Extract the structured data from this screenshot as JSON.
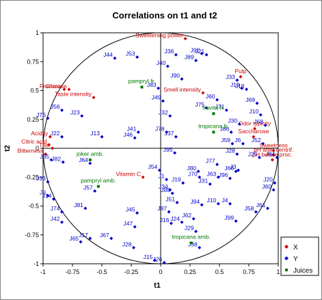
{
  "chart_data": {
    "type": "scatter",
    "title": "Correlations on t1 and t2",
    "xlabel": "t1",
    "ylabel": "t2",
    "xlim": [
      -1,
      1
    ],
    "ylim": [
      -1,
      1
    ],
    "xticks": [
      "-1",
      "-0.75",
      "-0.5",
      "-0.25",
      "0",
      "0.25",
      "0.5",
      "0.75",
      "1"
    ],
    "yticks": [
      "-1",
      "-0.75",
      "-0.5",
      "-0.25",
      "0",
      "0.25",
      "0.5",
      "0.75",
      "1"
    ],
    "xtick_values": [
      -1,
      -0.75,
      -0.5,
      -0.25,
      0,
      0.25,
      0.5,
      0.75,
      1
    ],
    "ytick_values": [
      -1,
      -0.75,
      -0.5,
      -0.25,
      0,
      0.25,
      0.5,
      0.75,
      1
    ],
    "grid": false,
    "unit_circle": true,
    "legend_position": "bottom-right",
    "colors": {
      "X": "#cc0000",
      "Y": "#0000cc",
      "Juices": "#007700"
    },
    "series": [
      {
        "name": "X",
        "points": [
          {
            "label": "Sweetening power",
            "x": 0.21,
            "y": 0.95
          },
          {
            "label": "Pulp",
            "x": 0.68,
            "y": 0.62
          },
          {
            "label": "Smell intensity",
            "x": 0.36,
            "y": 0.48
          },
          {
            "label": "Glucose",
            "x": -0.78,
            "y": 0.51
          },
          {
            "label": "Fructose",
            "x": -0.82,
            "y": 0.51
          },
          {
            "label": "Taste intensity",
            "x": -0.57,
            "y": 0.44
          },
          {
            "label": "Odor typicity",
            "x": 0.8,
            "y": 0.17
          },
          {
            "label": "Saccharose",
            "x": 0.79,
            "y": 0.1
          },
          {
            "label": "Acidity",
            "x": -0.94,
            "y": 0.1
          },
          {
            "label": "Citric acid",
            "x": -0.95,
            "y": 0.03
          },
          {
            "label": "Titer",
            "x": -0.92,
            "y": 0.0
          },
          {
            "label": "Bitterness",
            "x": -0.98,
            "y": -0.05
          },
          {
            "label": "Sweetness",
            "x": 0.96,
            "y": -0.02
          },
          {
            "label": "pH after centrif.",
            "x": 0.96,
            "y": -0.06
          },
          {
            "label": "pH before proc.",
            "x": 0.95,
            "y": -0.1
          },
          {
            "label": "Vitamin C",
            "x": -0.15,
            "y": -0.25
          }
        ]
      },
      {
        "name": "Y",
        "points": [
          {
            "label": "J44",
            "x": -0.39,
            "y": 0.78
          },
          {
            "label": "J53",
            "x": -0.2,
            "y": 0.79
          },
          {
            "label": "J36",
            "x": 0.13,
            "y": 0.81
          },
          {
            "label": "J21",
            "x": 0.39,
            "y": 0.81
          },
          {
            "label": "J92",
            "x": 0.35,
            "y": 0.82
          },
          {
            "label": "J89",
            "x": 0.3,
            "y": 0.76
          },
          {
            "label": "J40",
            "x": 0.06,
            "y": 0.71
          },
          {
            "label": "J90",
            "x": 0.18,
            "y": 0.6
          },
          {
            "label": "J33",
            "x": 0.65,
            "y": 0.59
          },
          {
            "label": "J19",
            "x": 0.69,
            "y": 0.52
          },
          {
            "label": "J18",
            "x": 0.73,
            "y": 0.51
          },
          {
            "label": "J83",
            "x": -0.02,
            "y": 0.52
          },
          {
            "label": "J49",
            "x": 0.02,
            "y": 0.41
          },
          {
            "label": "J60",
            "x": 0.48,
            "y": 0.42
          },
          {
            "label": "J69",
            "x": 0.82,
            "y": 0.39
          },
          {
            "label": "J75",
            "x": 0.39,
            "y": 0.35
          },
          {
            "label": "J71",
            "x": 0.56,
            "y": 0.33
          },
          {
            "label": "J10",
            "x": 0.85,
            "y": 0.29
          },
          {
            "label": "J56",
            "x": -0.84,
            "y": 0.33
          },
          {
            "label": "J23",
            "x": -0.67,
            "y": 0.28
          },
          {
            "label": "J76",
            "x": -0.96,
            "y": 0.26
          },
          {
            "label": "J32",
            "x": 0.08,
            "y": 0.28
          },
          {
            "label": "J41",
            "x": -0.19,
            "y": 0.14
          },
          {
            "label": "J46",
            "x": -0.22,
            "y": 0.09
          },
          {
            "label": "J30",
            "x": 0.67,
            "y": 0.21
          },
          {
            "label": "J68",
            "x": 0.89,
            "y": 0.2
          },
          {
            "label": "J86",
            "x": 0.6,
            "y": 0.14
          },
          {
            "label": "J22",
            "x": -0.84,
            "y": 0.1
          },
          {
            "label": "J13",
            "x": -0.5,
            "y": 0.1
          },
          {
            "label": "J78",
            "x": 0.05,
            "y": 0.14
          },
          {
            "label": "J37",
            "x": 0.13,
            "y": 0.1
          },
          {
            "label": "J59",
            "x": 0.61,
            "y": 0.04
          },
          {
            "label": "J6",
            "x": 0.7,
            "y": 0.04
          },
          {
            "label": "J52",
            "x": 0.87,
            "y": 0.04
          },
          {
            "label": "J95",
            "x": 0.12,
            "y": -0.04
          },
          {
            "label": "J28",
            "x": 0.65,
            "y": -0.05
          },
          {
            "label": "J85",
            "x": -0.93,
            "y": -0.1
          },
          {
            "label": "J82",
            "x": -0.83,
            "y": -0.12
          },
          {
            "label": "J64",
            "x": -0.6,
            "y": -0.13
          },
          {
            "label": "J25",
            "x": 0.84,
            "y": -0.08
          },
          {
            "label": "J84",
            "x": 0.99,
            "y": -0.08
          },
          {
            "label": "J54",
            "x": -0.01,
            "y": -0.19
          },
          {
            "label": "J77",
            "x": 0.48,
            "y": -0.14
          },
          {
            "label": "J3",
            "x": 0.66,
            "y": -0.19
          },
          {
            "label": "J80",
            "x": 0.32,
            "y": -0.2
          },
          {
            "label": "J63",
            "x": 0.49,
            "y": -0.25
          },
          {
            "label": "J66",
            "x": 0.64,
            "y": -0.2
          },
          {
            "label": "J96",
            "x": 0.59,
            "y": -0.26
          },
          {
            "label": "J70",
            "x": 0.33,
            "y": -0.25
          },
          {
            "label": "J93",
            "x": -0.96,
            "y": -0.29
          },
          {
            "label": "J1",
            "x": 0.05,
            "y": -0.27
          },
          {
            "label": "J19b",
            "x": 0.19,
            "y": -0.3
          },
          {
            "label": "J34",
            "x": 0.08,
            "y": -0.36
          },
          {
            "label": "J31",
            "x": 0.42,
            "y": -0.31
          },
          {
            "label": "J20",
            "x": 0.97,
            "y": -0.3
          },
          {
            "label": "J60b",
            "x": 0.96,
            "y": -0.36
          },
          {
            "label": "J57",
            "x": -0.56,
            "y": -0.37
          },
          {
            "label": "J9",
            "x": -0.96,
            "y": -0.41
          },
          {
            "label": "J14",
            "x": -0.91,
            "y": -0.44
          },
          {
            "label": "J88",
            "x": 0.1,
            "y": -0.39
          },
          {
            "label": "J81",
            "x": -0.64,
            "y": -0.52
          },
          {
            "label": "J74",
            "x": -0.84,
            "y": -0.55
          },
          {
            "label": "J51",
            "x": 0.14,
            "y": -0.47
          },
          {
            "label": "J94",
            "x": 0.35,
            "y": -0.49
          },
          {
            "label": "J10b",
            "x": 0.49,
            "y": -0.48
          },
          {
            "label": "J4",
            "x": 0.59,
            "y": -0.48
          },
          {
            "label": "J87",
            "x": 0.07,
            "y": -0.55
          },
          {
            "label": "J58",
            "x": 0.81,
            "y": -0.55
          },
          {
            "label": "J61",
            "x": 0.91,
            "y": -0.52
          },
          {
            "label": "J45",
            "x": -0.2,
            "y": -0.56
          },
          {
            "label": "J42",
            "x": -0.84,
            "y": -0.64
          },
          {
            "label": "J62",
            "x": 0.28,
            "y": -0.61
          },
          {
            "label": "J24",
            "x": 0.18,
            "y": -0.64
          },
          {
            "label": "J16",
            "x": 0.09,
            "y": -0.65
          },
          {
            "label": "J99",
            "x": 0.64,
            "y": -0.63
          },
          {
            "label": "J47",
            "x": -0.22,
            "y": -0.68
          },
          {
            "label": "J29",
            "x": 0.3,
            "y": -0.72
          },
          {
            "label": "J17",
            "x": -0.6,
            "y": -0.78
          },
          {
            "label": "J67",
            "x": -0.42,
            "y": -0.78
          },
          {
            "label": "J65",
            "x": -0.68,
            "y": -0.81
          },
          {
            "label": "J28b",
            "x": -0.23,
            "y": -0.86
          },
          {
            "label": "J38",
            "x": 0.33,
            "y": -0.86
          },
          {
            "label": "J15",
            "x": -0.05,
            "y": -0.97
          },
          {
            "label": "J26",
            "x": 0.03,
            "y": -0.99
          }
        ]
      },
      {
        "name": "Juices",
        "points": [
          {
            "label": "pampryl fr.",
            "x": -0.16,
            "y": 0.53
          },
          {
            "label": "fruvita fr.",
            "x": 0.45,
            "y": 0.3
          },
          {
            "label": "tropicana fr.",
            "x": 0.45,
            "y": 0.14
          },
          {
            "label": "joker amb.",
            "x": -0.6,
            "y": -0.1
          },
          {
            "label": "pampryl amb.",
            "x": -0.53,
            "y": -0.33
          },
          {
            "label": "tropicana amb.",
            "x": 0.26,
            "y": -0.82
          }
        ]
      }
    ]
  }
}
